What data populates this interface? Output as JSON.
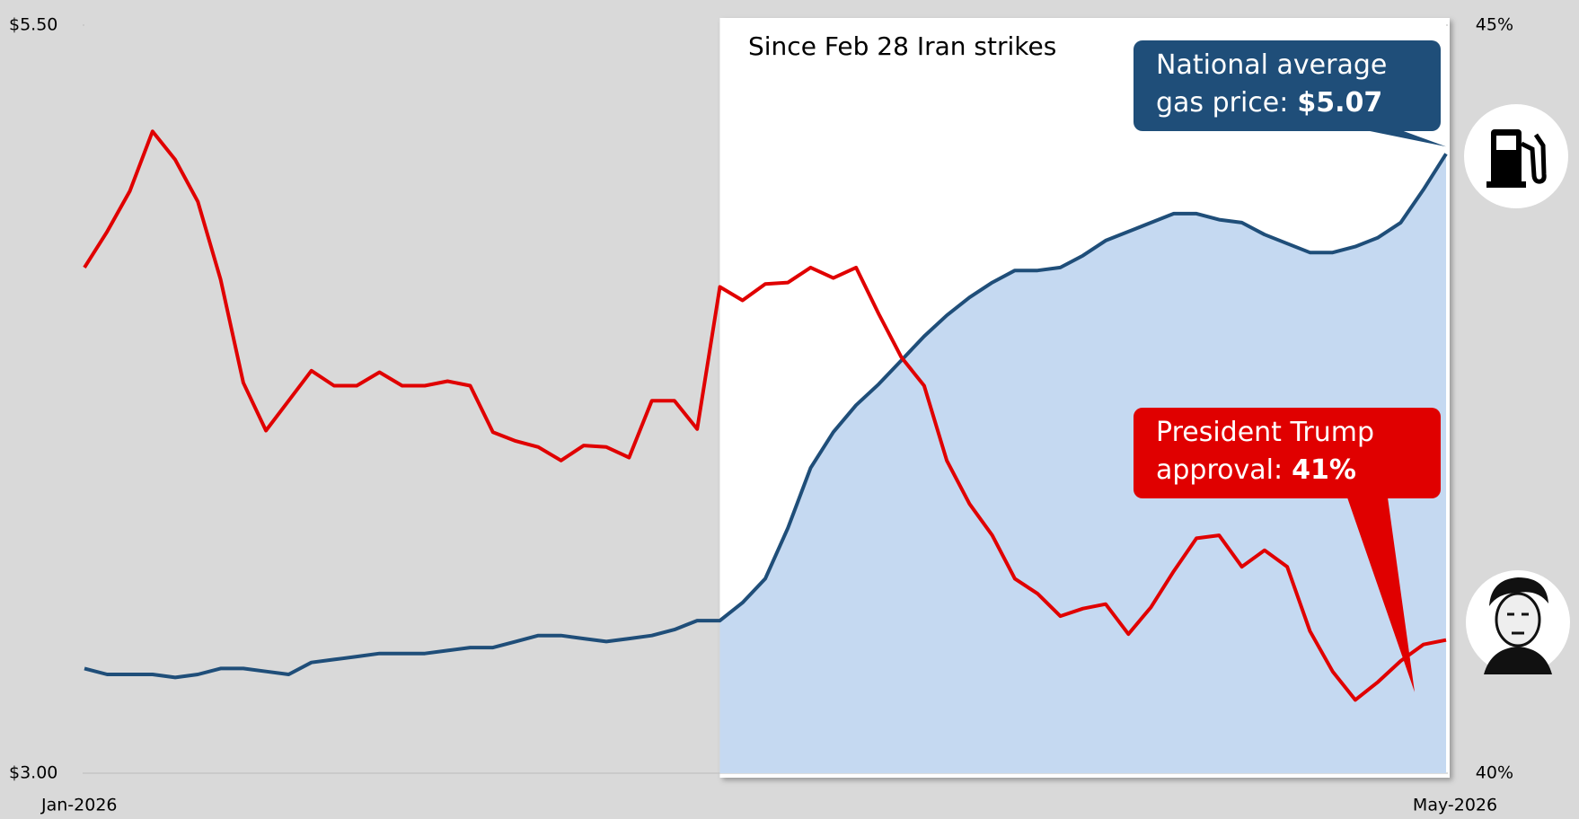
{
  "chart_data": {
    "type": "line",
    "title": "Since Feb 28 Iran strikes",
    "categories": [
      "Jan-2026",
      null,
      null,
      null,
      null,
      null,
      null,
      null,
      null,
      null,
      null,
      null,
      null,
      null,
      null,
      null,
      null,
      null,
      null,
      null,
      null,
      null,
      null,
      null,
      null,
      null,
      null,
      null,
      null,
      null,
      null,
      null,
      null,
      null,
      null,
      null,
      null,
      null,
      null,
      null,
      null,
      null,
      null,
      null,
      null,
      null,
      null,
      null,
      null,
      null,
      null,
      null,
      null,
      null,
      null,
      null,
      null,
      null,
      null,
      null,
      "May-2026"
    ],
    "ylim": [
      3,
      5.5
    ],
    "yticks": [
      {
        "value": 3,
        "label": "$3.00"
      },
      {
        "value": 5.5,
        "label": "$5.50"
      }
    ],
    "y2lim": [
      40,
      45
    ],
    "y2ticks": [
      {
        "value": 40,
        "label": "40%"
      },
      {
        "value": 45,
        "label": "45%"
      }
    ],
    "series": [
      {
        "color": "#1f4e79",
        "area_color": "#c5d9f1",
        "axis": "y",
        "callout": {
          "lines": [
            "National average",
            "gas price:"
          ],
          "value_label": "$5.07"
        },
        "values": [
          3.35,
          3.33,
          3.33,
          3.33,
          3.32,
          3.33,
          3.35,
          3.35,
          3.34,
          3.33,
          3.37,
          3.38,
          3.39,
          3.4,
          3.4,
          3.4,
          3.41,
          3.42,
          3.42,
          3.44,
          3.46,
          3.46,
          3.45,
          3.44,
          3.45,
          3.46,
          3.48,
          3.51,
          3.51,
          3.57,
          3.65,
          3.82,
          4.02,
          4.14,
          4.23,
          4.3,
          4.38,
          4.46,
          4.53,
          4.59,
          4.64,
          4.68,
          4.68,
          4.69,
          4.73,
          4.78,
          4.81,
          4.84,
          4.87,
          4.87,
          4.85,
          4.84,
          4.8,
          4.77,
          4.74,
          4.74,
          4.76,
          4.79,
          4.84,
          4.95,
          5.07
        ]
      },
      {
        "color": "#e00000",
        "axis": "y2",
        "callout": {
          "lines": [
            "President Trump",
            "approval:"
          ],
          "value_label": "41%"
        },
        "values": [
          43.38,
          43.62,
          43.89,
          44.29,
          44.1,
          43.82,
          43.3,
          42.61,
          42.29,
          42.49,
          42.69,
          42.59,
          42.59,
          42.68,
          42.59,
          42.59,
          42.62,
          42.59,
          42.28,
          42.22,
          42.18,
          42.09,
          42.19,
          42.18,
          42.11,
          42.49,
          42.49,
          42.3,
          43.25,
          43.16,
          43.27,
          43.28,
          43.38,
          43.31,
          43.38,
          43.07,
          42.78,
          42.59,
          42.09,
          41.8,
          41.59,
          41.3,
          41.2,
          41.05,
          41.1,
          41.13,
          40.93,
          41.11,
          41.35,
          41.57,
          41.59,
          41.38,
          41.49,
          41.38,
          40.95,
          40.68,
          40.49,
          40.61,
          40.75,
          40.86,
          40.89
        ]
      }
    ]
  }
}
